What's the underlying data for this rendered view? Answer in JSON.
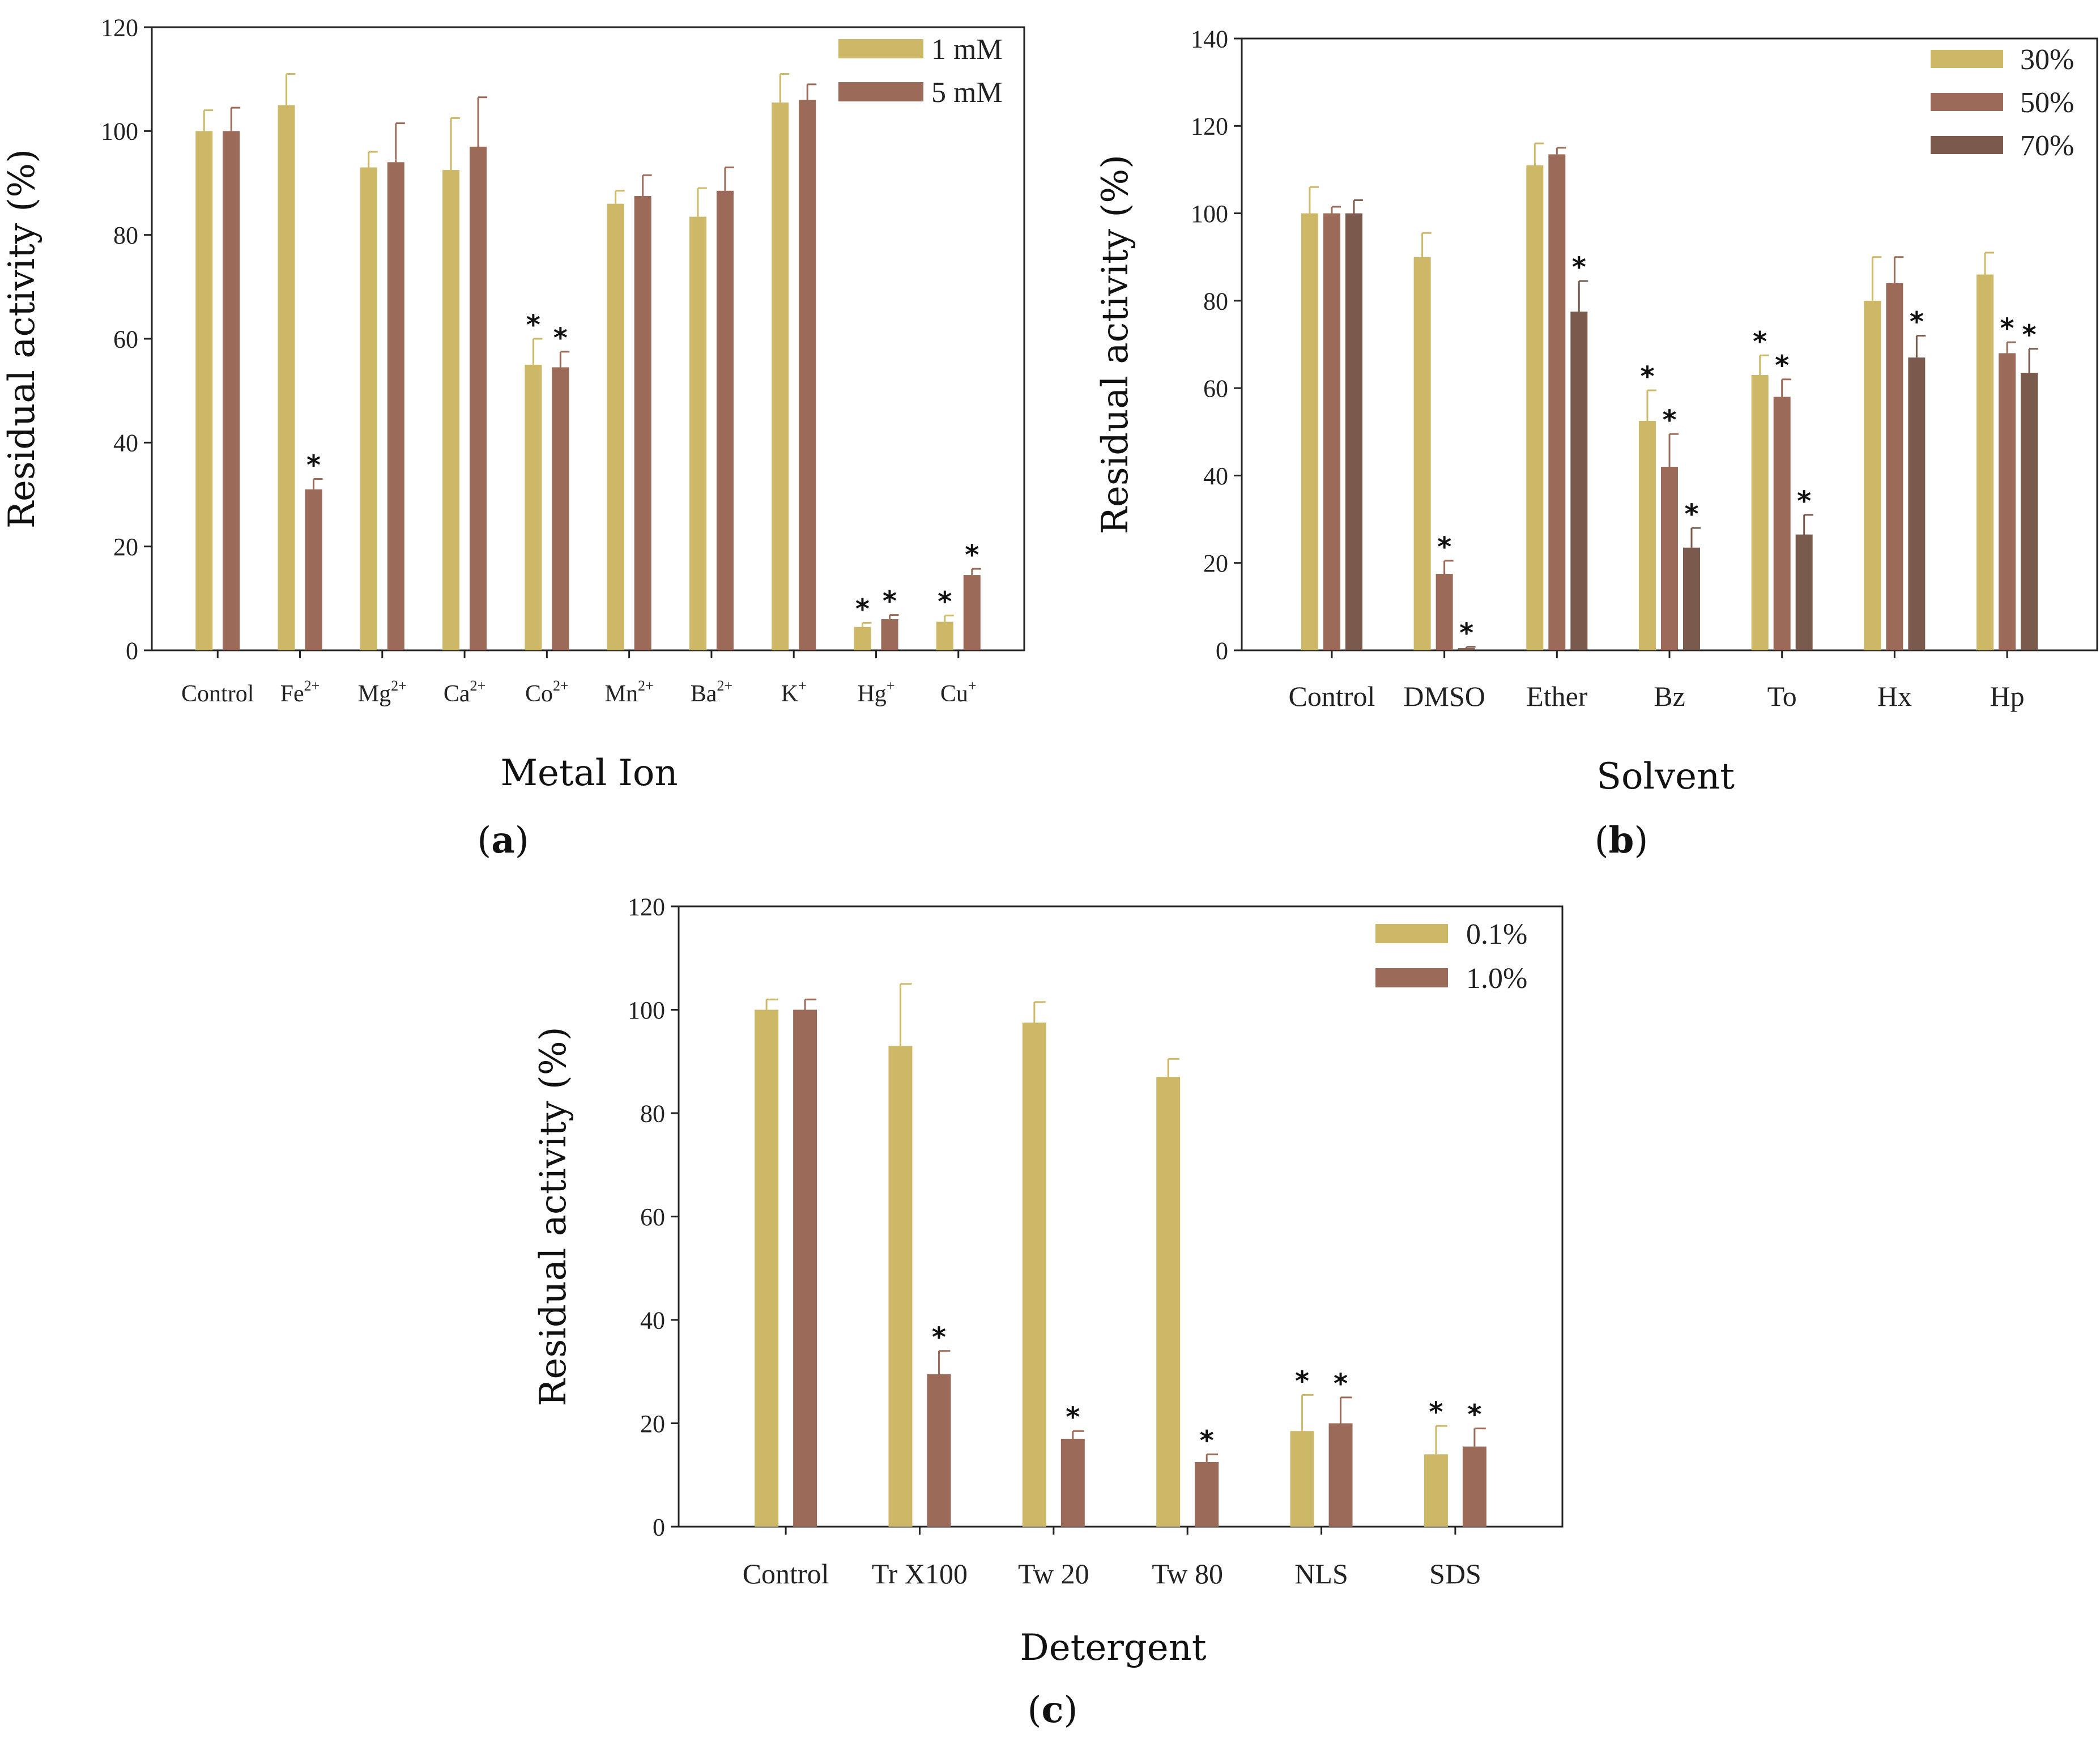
{
  "chart_data": [
    {
      "id": "a",
      "type": "bar",
      "panel_label": "a",
      "xlabel": "Metal Ion",
      "ylabel": "Residual activity (%)",
      "ylim": [
        0,
        120
      ],
      "yticks": [
        0,
        20,
        40,
        60,
        80,
        100,
        120
      ],
      "categories": [
        {
          "base": "Control",
          "sup": ""
        },
        {
          "base": "Fe",
          "sup": "2+"
        },
        {
          "base": "Mg",
          "sup": "2+"
        },
        {
          "base": "Ca",
          "sup": "2+"
        },
        {
          "base": "Co",
          "sup": "2+"
        },
        {
          "base": "Mn",
          "sup": "2+"
        },
        {
          "base": "Ba",
          "sup": "2+"
        },
        {
          "base": "K",
          "sup": "+"
        },
        {
          "base": "Hg",
          "sup": "+"
        },
        {
          "base": "Cu",
          "sup": "+"
        }
      ],
      "legend_position": "top-right",
      "series": [
        {
          "name": "1 mM",
          "color": "#cdb868",
          "values": [
            100,
            105,
            93,
            92.5,
            55,
            86,
            83.5,
            105.5,
            4.5,
            5.5
          ],
          "errors": [
            4,
            6,
            3,
            10,
            5,
            2.5,
            5.5,
            5.5,
            0.8,
            1.2
          ],
          "significant": [
            false,
            false,
            false,
            false,
            true,
            false,
            false,
            false,
            true,
            true
          ]
        },
        {
          "name": "5 mM",
          "color": "#9c6a58",
          "values": [
            100,
            31,
            94,
            97,
            54.5,
            87.5,
            88.5,
            106,
            6,
            14.5
          ],
          "errors": [
            4.5,
            2,
            7.5,
            9.5,
            3,
            4,
            4.5,
            3,
            0.8,
            1.2
          ],
          "significant": [
            false,
            true,
            false,
            false,
            true,
            false,
            false,
            false,
            true,
            true
          ]
        }
      ]
    },
    {
      "id": "b",
      "type": "bar",
      "panel_label": "b",
      "xlabel": "Solvent",
      "ylabel": "Residual activity (%)",
      "ylim": [
        0,
        140
      ],
      "yticks": [
        0,
        20,
        40,
        60,
        80,
        100,
        120,
        140
      ],
      "categories": [
        {
          "base": "Control",
          "sup": ""
        },
        {
          "base": "DMSO",
          "sup": ""
        },
        {
          "base": "Ether",
          "sup": ""
        },
        {
          "base": "Bz",
          "sup": ""
        },
        {
          "base": "To",
          "sup": ""
        },
        {
          "base": "Hx",
          "sup": ""
        },
        {
          "base": "Hp",
          "sup": ""
        }
      ],
      "legend_position": "top-right",
      "series": [
        {
          "name": "30%",
          "color": "#cdb868",
          "values": [
            100,
            90,
            111,
            52.5,
            63,
            80,
            86
          ],
          "errors": [
            6,
            5.5,
            5,
            7,
            4.5,
            10,
            5
          ],
          "significant": [
            false,
            false,
            false,
            true,
            true,
            false,
            false
          ]
        },
        {
          "name": "50%",
          "color": "#9c6a58",
          "values": [
            100,
            17.5,
            113.5,
            42,
            58,
            84,
            68
          ],
          "errors": [
            1.5,
            3,
            1.5,
            7.5,
            4,
            6,
            2.5
          ],
          "significant": [
            false,
            true,
            false,
            true,
            true,
            false,
            true
          ]
        },
        {
          "name": "70%",
          "color": "#7a5a4c",
          "values": [
            100,
            0.5,
            77.5,
            23.5,
            26.5,
            67,
            63.5
          ],
          "errors": [
            3,
            0.3,
            7,
            4.5,
            4.5,
            5,
            5.5
          ],
          "significant": [
            false,
            true,
            true,
            true,
            true,
            true,
            true
          ]
        }
      ]
    },
    {
      "id": "c",
      "type": "bar",
      "panel_label": "c",
      "xlabel": "Detergent",
      "ylabel": "Residual activity (%)",
      "ylim": [
        0,
        120
      ],
      "yticks": [
        0,
        20,
        40,
        60,
        80,
        100,
        120
      ],
      "categories": [
        {
          "base": "Control",
          "sup": ""
        },
        {
          "base": "Tr X100",
          "sup": ""
        },
        {
          "base": "Tw 20",
          "sup": ""
        },
        {
          "base": "Tw 80",
          "sup": ""
        },
        {
          "base": "NLS",
          "sup": ""
        },
        {
          "base": "SDS",
          "sup": ""
        }
      ],
      "legend_position": "top-right",
      "series": [
        {
          "name": "0.1%",
          "color": "#cdb868",
          "values": [
            100,
            93,
            97.5,
            87,
            18.5,
            14
          ],
          "errors": [
            2,
            12,
            4,
            3.5,
            7,
            5.5
          ],
          "significant": [
            false,
            false,
            false,
            false,
            true,
            true
          ]
        },
        {
          "name": "1.0%",
          "color": "#9c6a58",
          "values": [
            100,
            29.5,
            17,
            12.5,
            20,
            15.5
          ],
          "errors": [
            2,
            4.5,
            1.5,
            1.5,
            5,
            3.5
          ],
          "significant": [
            false,
            true,
            true,
            true,
            true,
            true
          ]
        }
      ]
    }
  ]
}
